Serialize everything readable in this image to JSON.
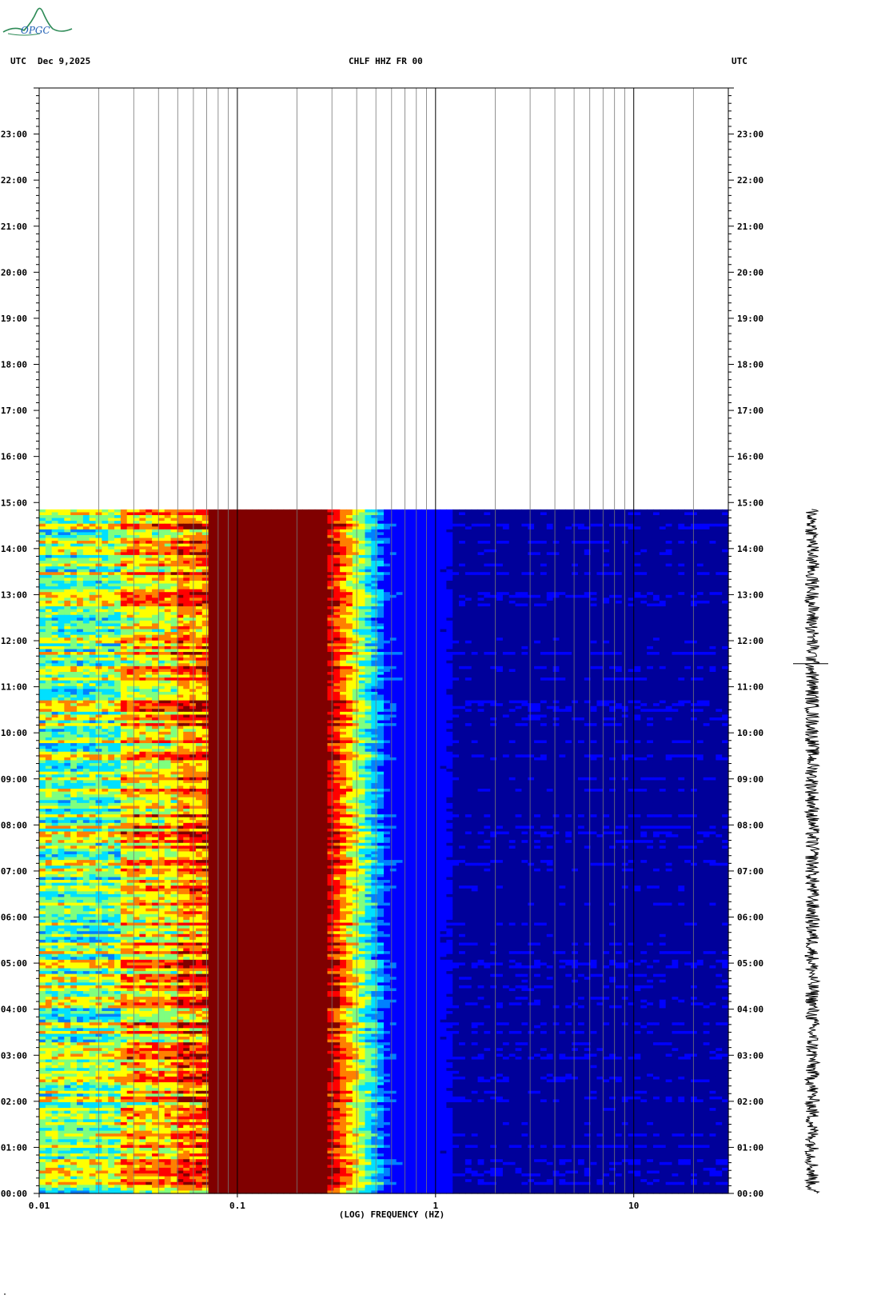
{
  "logo_text": "OPGC",
  "header": {
    "left_tz": "UTC",
    "date": "Dec 9,2025",
    "station": "CHLF HHZ FR 00",
    "right_tz": "UTC"
  },
  "footer_mark": "\"",
  "chart_data": {
    "type": "heatmap",
    "title": "CHLF HHZ FR 00",
    "xlabel": "(LOG) FREQUENCY (HZ)",
    "ylabel": "",
    "x_scale": "log",
    "xlim": [
      0.01,
      30
    ],
    "x_tick_labels": [
      {
        "value": 0.01,
        "label": "0.01"
      },
      {
        "value": 0.1,
        "label": "0.1"
      },
      {
        "value": 1,
        "label": "1"
      },
      {
        "value": 10,
        "label": "10"
      }
    ],
    "y_unit": "hours UTC",
    "ylim": [
      0,
      24
    ],
    "y_tick_labels": [
      "00:00",
      "01:00",
      "02:00",
      "03:00",
      "04:00",
      "05:00",
      "06:00",
      "07:00",
      "08:00",
      "09:00",
      "10:00",
      "11:00",
      "12:00",
      "13:00",
      "14:00",
      "15:00",
      "16:00",
      "17:00",
      "18:00",
      "19:00",
      "20:00",
      "21:00",
      "22:00",
      "23:00"
    ],
    "data_end_hour": 14.85,
    "colormap": [
      "#00009a",
      "#0000ff",
      "#0080ff",
      "#00e0ff",
      "#7fff7f",
      "#ffff00",
      "#ff8000",
      "#ff0000",
      "#800000"
    ],
    "frequency_bands": [
      {
        "f_min": 0.01,
        "f_max": 0.025,
        "level": "green-yellow"
      },
      {
        "f_min": 0.025,
        "f_max": 0.05,
        "level": "yellow-red"
      },
      {
        "f_min": 0.05,
        "f_max": 0.07,
        "level": "red-yellow"
      },
      {
        "f_min": 0.07,
        "f_max": 0.1,
        "level": "dark red"
      },
      {
        "f_min": 0.1,
        "f_max": 0.28,
        "level": "dark red"
      },
      {
        "f_min": 0.28,
        "f_max": 0.4,
        "level": "red-yellow-green"
      },
      {
        "f_min": 0.4,
        "f_max": 0.55,
        "level": "cyan-blue"
      },
      {
        "f_min": 0.55,
        "f_max": 1.2,
        "level": "blue"
      },
      {
        "f_min": 1.2,
        "f_max": 30,
        "level": "dark blue"
      }
    ],
    "grid": true,
    "legend": "none",
    "trace": "seismogram trace at right, 00:00 to 14:50"
  }
}
